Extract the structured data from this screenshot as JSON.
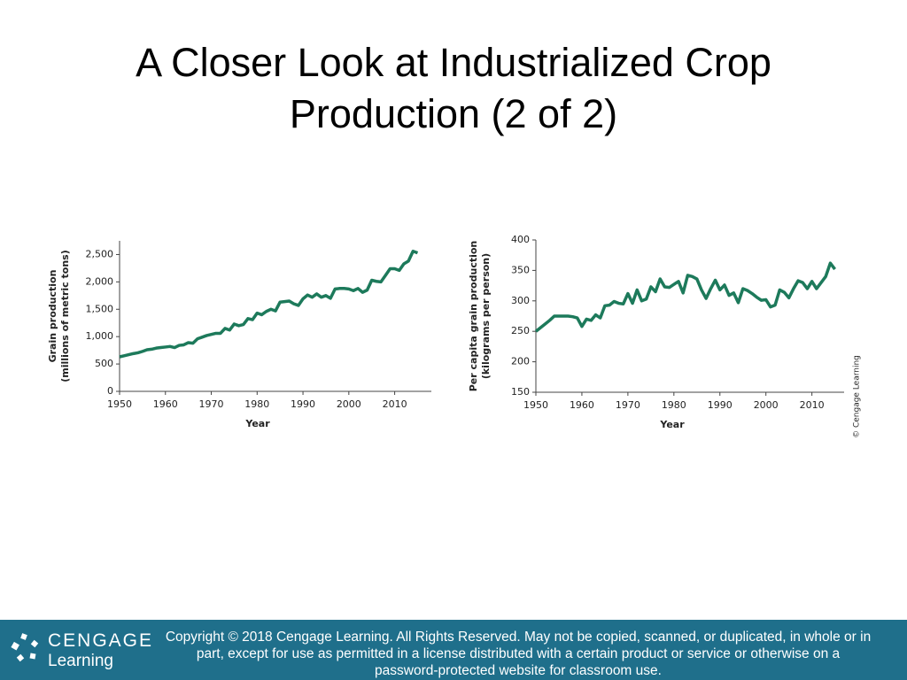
{
  "title": [
    "A Closer Look at Industrialized Crop",
    "Production (2 of 2)"
  ],
  "credit": "© Cengage Learning",
  "footer": {
    "logo": [
      "CENGAGE",
      "Learning"
    ],
    "copyright": "Copyright © 2018 Cengage Learning. All Rights Reserved. May not be copied, scanned, or duplicated, in whole or in part, except for use as permitted in a license distributed with a certain product or service or otherwise on a password-protected website for classroom use."
  },
  "chart_data": [
    {
      "type": "line",
      "xlabel": "Year",
      "ylabel": [
        "Grain production",
        "(millions of metric tons)"
      ],
      "xlim": [
        1950,
        2018
      ],
      "xticks": [
        1950,
        1960,
        1970,
        1980,
        1990,
        2000,
        2010
      ],
      "ylim": [
        0,
        2750
      ],
      "yticks": [
        0,
        500,
        {
          "value": 1000,
          "label": "1,000"
        },
        {
          "value": 1500,
          "label": "1,500"
        },
        {
          "value": 2000,
          "label": "2,000"
        },
        {
          "value": 2500,
          "label": "2,500"
        }
      ],
      "x": [
        1950,
        1951,
        1952,
        1953,
        1954,
        1955,
        1956,
        1957,
        1958,
        1959,
        1960,
        1961,
        1962,
        1963,
        1964,
        1965,
        1966,
        1967,
        1968,
        1969,
        1970,
        1971,
        1972,
        1973,
        1974,
        1975,
        1976,
        1977,
        1978,
        1979,
        1980,
        1981,
        1982,
        1983,
        1984,
        1985,
        1986,
        1987,
        1988,
        1989,
        1990,
        1991,
        1992,
        1993,
        1994,
        1995,
        1996,
        1997,
        1998,
        1999,
        2000,
        2001,
        2002,
        2003,
        2004,
        2005,
        2006,
        2007,
        2008,
        2009,
        2010,
        2011,
        2012,
        2013,
        2014,
        2015
      ],
      "series": [
        {
          "color": "#1d7a5b",
          "values": [
            631,
            650,
            670,
            690,
            705,
            730,
            760,
            770,
            790,
            800,
            810,
            820,
            800,
            840,
            850,
            890,
            880,
            960,
            990,
            1020,
            1040,
            1060,
            1060,
            1150,
            1120,
            1230,
            1200,
            1220,
            1330,
            1310,
            1430,
            1400,
            1460,
            1500,
            1470,
            1630,
            1640,
            1650,
            1600,
            1570,
            1690,
            1760,
            1720,
            1780,
            1720,
            1750,
            1700,
            1870,
            1880,
            1880,
            1870,
            1840,
            1880,
            1810,
            1850,
            2030,
            2010,
            2000,
            2120,
            2240,
            2240,
            2210,
            2330,
            2380,
            2560,
            2530
          ]
        }
      ]
    },
    {
      "type": "line",
      "xlabel": "Year",
      "ylabel": [
        "Per capita grain production",
        "(kilograms per person)"
      ],
      "xlim": [
        1950,
        2017
      ],
      "xticks": [
        1950,
        1960,
        1970,
        1980,
        1990,
        2000,
        2010
      ],
      "ylim": [
        150,
        400
      ],
      "yticks": [
        150,
        200,
        250,
        300,
        350,
        400
      ],
      "x": [
        1950,
        1951,
        1952,
        1953,
        1954,
        1955,
        1956,
        1957,
        1958,
        1959,
        1960,
        1961,
        1962,
        1963,
        1964,
        1965,
        1966,
        1967,
        1968,
        1969,
        1970,
        1971,
        1972,
        1973,
        1974,
        1975,
        1976,
        1977,
        1978,
        1979,
        1980,
        1981,
        1982,
        1983,
        1984,
        1985,
        1986,
        1987,
        1988,
        1989,
        1990,
        1991,
        1992,
        1993,
        1994,
        1995,
        1996,
        1997,
        1998,
        1999,
        2000,
        2001,
        2002,
        2003,
        2004,
        2005,
        2006,
        2007,
        2008,
        2009,
        2010,
        2011,
        2012,
        2013,
        2014,
        2015
      ],
      "series": [
        {
          "color": "#1d7a5b",
          "values": [
            250,
            256,
            262,
            268,
            275,
            275,
            275,
            275,
            274,
            272,
            258,
            270,
            268,
            277,
            272,
            292,
            293,
            299,
            296,
            295,
            312,
            296,
            318,
            300,
            303,
            323,
            315,
            336,
            323,
            322,
            327,
            332,
            313,
            342,
            340,
            336,
            318,
            304,
            320,
            334,
            318,
            326,
            309,
            313,
            297,
            320,
            317,
            312,
            306,
            301,
            302,
            290,
            293,
            318,
            314,
            305,
            320,
            333,
            330,
            320,
            332,
            320,
            330,
            340,
            362,
            352
          ]
        }
      ]
    }
  ]
}
